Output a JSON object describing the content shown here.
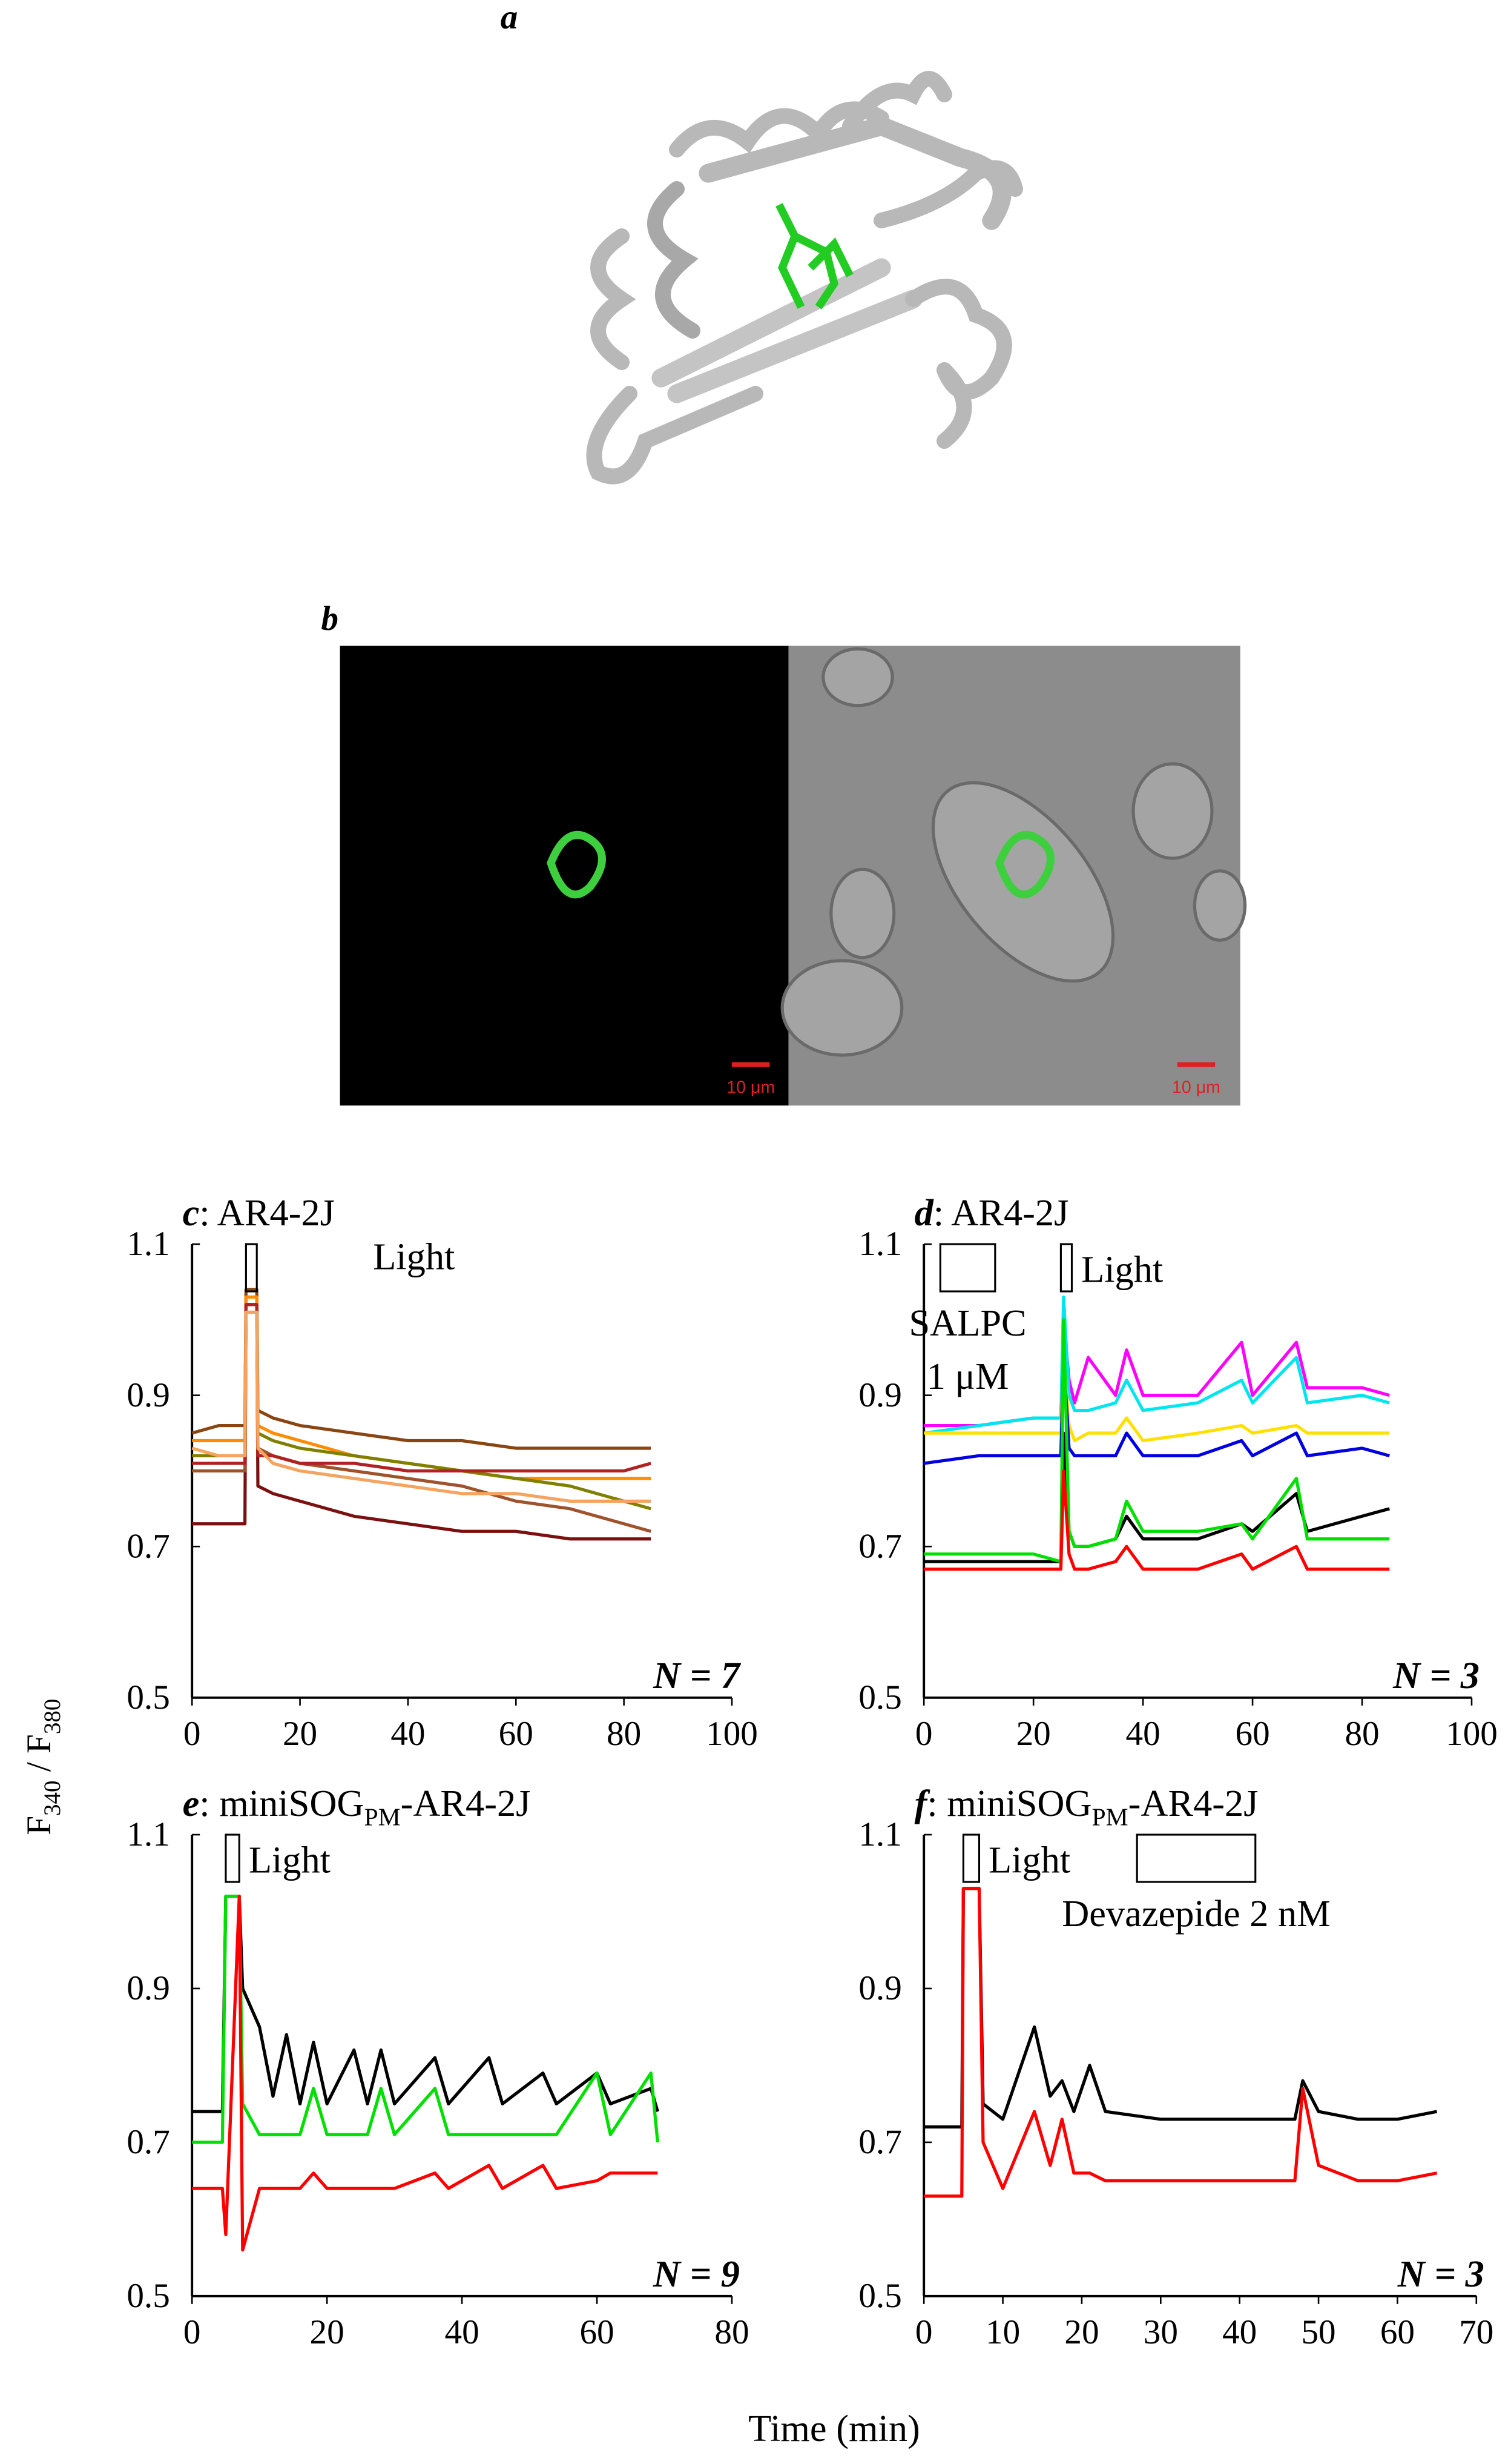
{
  "panels": {
    "a": {
      "label": "a"
    },
    "b": {
      "label": "b",
      "scale_bar_labels": [
        "10 μm",
        "10 μm"
      ]
    }
  },
  "shared_axes": {
    "y_label_parts": [
      "F",
      "340",
      " / F",
      "380"
    ],
    "x_label": "Time (min)"
  },
  "chart_data": [
    {
      "type": "line",
      "title_parts": [
        "c",
        ": AR4-2J"
      ],
      "n_label": "N = 7",
      "xlim": [
        0,
        100
      ],
      "xticks": [
        0,
        20,
        40,
        60,
        80,
        100
      ],
      "ylim": [
        0.5,
        1.1
      ],
      "yticks": [
        0.5,
        0.7,
        0.9,
        1.1
      ],
      "stimuli": [
        {
          "label": [
            "Light"
          ],
          "start": 10,
          "end": 12
        }
      ],
      "x": [
        0,
        5,
        9.8,
        10,
        12,
        12.2,
        15,
        20,
        30,
        40,
        50,
        60,
        70,
        80,
        85
      ],
      "series": [
        {
          "color": "#7b1010",
          "values": [
            0.73,
            0.73,
            0.73,
            1.02,
            1.02,
            0.78,
            0.77,
            0.76,
            0.74,
            0.73,
            0.72,
            0.72,
            0.71,
            0.71,
            0.71
          ]
        },
        {
          "color": "#8b4513",
          "values": [
            0.85,
            0.86,
            0.86,
            1.04,
            1.04,
            0.88,
            0.87,
            0.86,
            0.85,
            0.84,
            0.84,
            0.83,
            0.83,
            0.83,
            0.83
          ]
        },
        {
          "color": "#ff8c00",
          "values": [
            0.84,
            0.84,
            0.84,
            1.03,
            1.03,
            0.86,
            0.85,
            0.84,
            0.82,
            0.81,
            0.8,
            0.79,
            0.79,
            0.79,
            0.79
          ]
        },
        {
          "color": "#808000",
          "values": [
            0.82,
            0.82,
            0.82,
            1.02,
            1.02,
            0.85,
            0.84,
            0.83,
            0.82,
            0.81,
            0.8,
            0.79,
            0.78,
            0.76,
            0.75
          ]
        },
        {
          "color": "#a0522d",
          "values": [
            0.8,
            0.8,
            0.8,
            1.02,
            1.02,
            0.83,
            0.82,
            0.81,
            0.8,
            0.79,
            0.78,
            0.76,
            0.75,
            0.73,
            0.72
          ]
        },
        {
          "color": "#b22222",
          "values": [
            0.81,
            0.81,
            0.81,
            1.02,
            1.02,
            0.82,
            0.82,
            0.81,
            0.81,
            0.8,
            0.8,
            0.8,
            0.8,
            0.8,
            0.81
          ]
        },
        {
          "color": "#f4a460",
          "values": [
            0.83,
            0.82,
            0.82,
            1.01,
            1.01,
            0.83,
            0.81,
            0.8,
            0.79,
            0.78,
            0.77,
            0.77,
            0.76,
            0.76,
            0.76
          ]
        }
      ]
    },
    {
      "type": "line",
      "title_parts": [
        "d",
        ": AR4-2J"
      ],
      "n_label": "N = 3",
      "xlim": [
        0,
        100
      ],
      "xticks": [
        0,
        20,
        40,
        60,
        80,
        100
      ],
      "ylim": [
        0.5,
        1.1
      ],
      "yticks": [
        0.5,
        0.7,
        0.9,
        1.1
      ],
      "stimuli": [
        {
          "label": [
            "SALPC",
            "1 μM"
          ],
          "start": 3,
          "end": 13
        },
        {
          "label": [
            "Light"
          ],
          "start": 25,
          "end": 27
        }
      ],
      "x": [
        0,
        10,
        20,
        25,
        25.5,
        26.5,
        27.5,
        30,
        35,
        37,
        40,
        50,
        58,
        60,
        68,
        70,
        80,
        85
      ],
      "series": [
        {
          "color": "#ff00ff",
          "values": [
            0.86,
            0.86,
            0.87,
            0.87,
            1.0,
            0.92,
            0.89,
            0.95,
            0.9,
            0.96,
            0.9,
            0.9,
            0.97,
            0.9,
            0.97,
            0.91,
            0.91,
            0.9
          ]
        },
        {
          "color": "#00e5ee",
          "values": [
            0.85,
            0.86,
            0.87,
            0.87,
            1.03,
            0.9,
            0.88,
            0.88,
            0.89,
            0.92,
            0.88,
            0.89,
            0.92,
            0.89,
            0.95,
            0.89,
            0.9,
            0.89
          ]
        },
        {
          "color": "#ffe000",
          "values": [
            0.85,
            0.85,
            0.85,
            0.85,
            0.95,
            0.86,
            0.84,
            0.85,
            0.85,
            0.87,
            0.84,
            0.85,
            0.86,
            0.85,
            0.86,
            0.85,
            0.85,
            0.85
          ]
        },
        {
          "color": "#0000e0",
          "values": [
            0.81,
            0.82,
            0.82,
            0.82,
            0.95,
            0.83,
            0.82,
            0.82,
            0.82,
            0.85,
            0.82,
            0.82,
            0.84,
            0.82,
            0.85,
            0.82,
            0.83,
            0.82
          ]
        },
        {
          "color": "#000000",
          "values": [
            0.68,
            0.68,
            0.68,
            0.68,
            0.85,
            0.72,
            0.7,
            0.7,
            0.71,
            0.74,
            0.71,
            0.71,
            0.73,
            0.72,
            0.77,
            0.72,
            0.74,
            0.75
          ]
        },
        {
          "color": "#00e000",
          "values": [
            0.69,
            0.69,
            0.69,
            0.68,
            1.0,
            0.72,
            0.7,
            0.7,
            0.71,
            0.76,
            0.72,
            0.72,
            0.73,
            0.71,
            0.79,
            0.71,
            0.71,
            0.71
          ]
        },
        {
          "color": "#ff0000",
          "values": [
            0.67,
            0.67,
            0.67,
            0.67,
            0.8,
            0.69,
            0.67,
            0.67,
            0.68,
            0.7,
            0.67,
            0.67,
            0.69,
            0.67,
            0.7,
            0.67,
            0.67,
            0.67
          ]
        }
      ]
    },
    {
      "type": "line",
      "title_parts": [
        "e",
        ": miniSOG",
        "PM",
        "-AR4-2J"
      ],
      "n_label": "N = 9",
      "xlim": [
        0,
        80
      ],
      "xticks": [
        0,
        20,
        40,
        60,
        80
      ],
      "ylim": [
        0.5,
        1.1
      ],
      "yticks": [
        0.5,
        0.7,
        0.9,
        1.1
      ],
      "stimuli": [
        {
          "label": [
            "Light"
          ],
          "start": 5,
          "end": 7
        }
      ],
      "x": [
        0,
        4.5,
        5,
        7,
        7.5,
        10,
        12,
        14,
        16,
        18,
        20,
        24,
        26,
        28,
        30,
        36,
        38,
        44,
        46,
        52,
        54,
        60,
        62,
        68,
        69
      ],
      "series": [
        {
          "color": "#000000",
          "values": [
            0.74,
            0.74,
            1.02,
            1.02,
            0.9,
            0.85,
            0.76,
            0.84,
            0.75,
            0.83,
            0.75,
            0.82,
            0.75,
            0.82,
            0.75,
            0.81,
            0.75,
            0.81,
            0.75,
            0.79,
            0.75,
            0.79,
            0.75,
            0.77,
            0.74
          ]
        },
        {
          "color": "#00e000",
          "values": [
            0.7,
            0.7,
            1.02,
            1.02,
            0.75,
            0.71,
            0.71,
            0.71,
            0.71,
            0.77,
            0.71,
            0.71,
            0.71,
            0.77,
            0.71,
            0.77,
            0.71,
            0.71,
            0.71,
            0.71,
            0.71,
            0.79,
            0.71,
            0.79,
            0.7
          ]
        },
        {
          "color": "#ff0000",
          "values": [
            0.64,
            0.64,
            0.58,
            1.02,
            0.56,
            0.64,
            0.64,
            0.64,
            0.64,
            0.66,
            0.64,
            0.64,
            0.64,
            0.64,
            0.64,
            0.66,
            0.64,
            0.67,
            0.64,
            0.67,
            0.64,
            0.65,
            0.66,
            0.66,
            0.66
          ]
        }
      ]
    },
    {
      "type": "line",
      "title_parts": [
        "f",
        ": miniSOG",
        "PM",
        "-AR4-2J"
      ],
      "n_label": "N = 3",
      "xlim": [
        0,
        70
      ],
      "xticks": [
        0,
        10,
        20,
        30,
        40,
        50,
        60,
        70
      ],
      "ylim": [
        0.5,
        1.1
      ],
      "yticks": [
        0.5,
        0.7,
        0.9,
        1.1
      ],
      "stimuli": [
        {
          "label": [
            "Light"
          ],
          "start": 5,
          "end": 7
        },
        {
          "label": [
            "Devazepide 2 nM"
          ],
          "start": 27,
          "end": 42
        }
      ],
      "x": [
        0,
        4.8,
        5,
        7,
        7.5,
        10,
        14,
        16,
        17.5,
        19,
        21,
        23,
        30,
        40,
        47,
        48,
        50,
        55,
        60,
        65
      ],
      "series": [
        {
          "color": "#000000",
          "values": [
            0.72,
            0.72,
            1.03,
            1.03,
            0.75,
            0.73,
            0.85,
            0.76,
            0.78,
            0.74,
            0.8,
            0.74,
            0.73,
            0.73,
            0.73,
            0.78,
            0.74,
            0.73,
            0.73,
            0.74
          ]
        },
        {
          "color": "#ff0000",
          "values": [
            0.63,
            0.63,
            1.03,
            1.03,
            0.7,
            0.64,
            0.74,
            0.67,
            0.73,
            0.66,
            0.66,
            0.65,
            0.65,
            0.65,
            0.65,
            0.77,
            0.67,
            0.65,
            0.65,
            0.66
          ]
        }
      ]
    }
  ]
}
